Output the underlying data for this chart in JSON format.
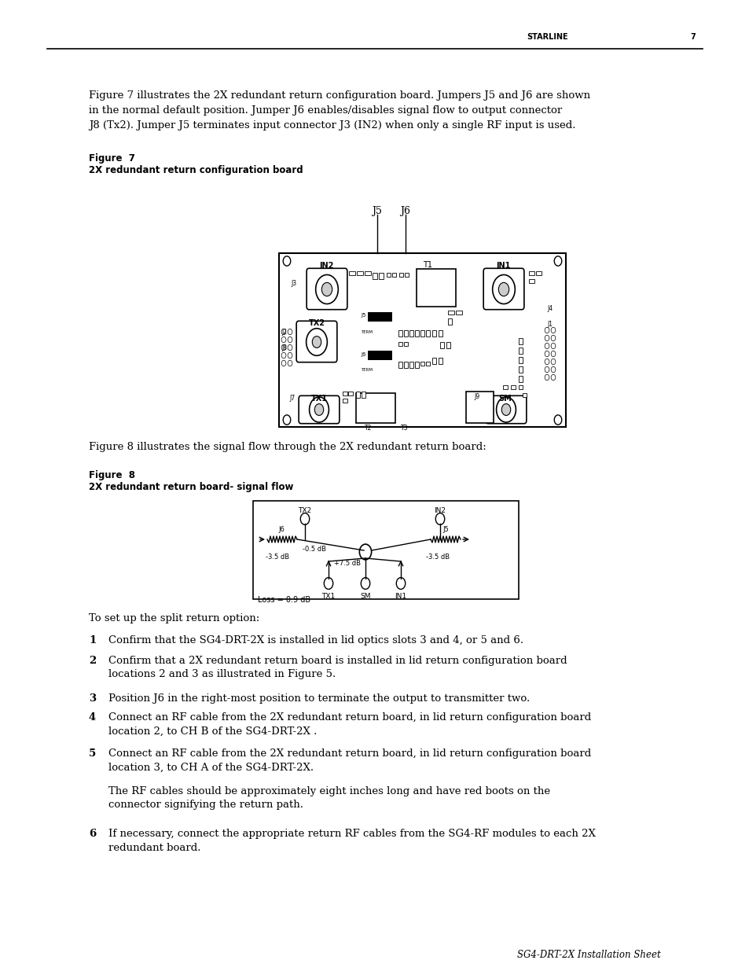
{
  "page_header_text": "STARLINE",
  "page_number": "7",
  "body_text_line1": "Figure 7 illustrates the 2X redundant return configuration board. Jumpers J5 and J6 are shown",
  "body_text_line2": "in the normal default position. Jumper J6 enables/disables signal flow to output connector",
  "body_text_line3": "J8 (Tx2). Jumper J5 terminates input connector J3 (IN2) when only a single RF input is used.",
  "figure7_label": "Figure  7",
  "figure7_caption": "2X redundant return configuration board",
  "figure8_intro": "Figure 8 illustrates the signal flow through the 2X redundant return board:",
  "figure8_label": "Figure  8",
  "figure8_caption": "2X redundant return board- signal flow",
  "numbered_items": [
    "Confirm that the SG4-DRT-2X is installed in lid optics slots 3 and 4, or 5 and 6.",
    "Confirm that a 2X redundant return board is installed in lid return configuration board\nlocations 2 and 3 as illustrated in Figure 5.",
    "Position J6 in the right-most position to terminate the output to transmitter two.",
    "Connect an RF cable from the 2X redundant return board, in lid return configuration board\nlocation 2, to CH B of the SG4-DRT-2X .",
    "Connect an RF cable from the 2X redundant return board, in lid return configuration board\nlocation 3, to CH A of the SG4-DRT-2X.",
    "The RF cables should be approximately eight inches long and have red boots on the\nconnector signifying the return path.",
    "If necessary, connect the appropriate return RF cables from the SG4-RF modules to each 2X\nredundant board."
  ],
  "footer_text": "SG4-DRT-2X Installation Sheet",
  "header_intro": "To set up the split return option:",
  "background_color": "#ffffff",
  "text_color": "#000000"
}
